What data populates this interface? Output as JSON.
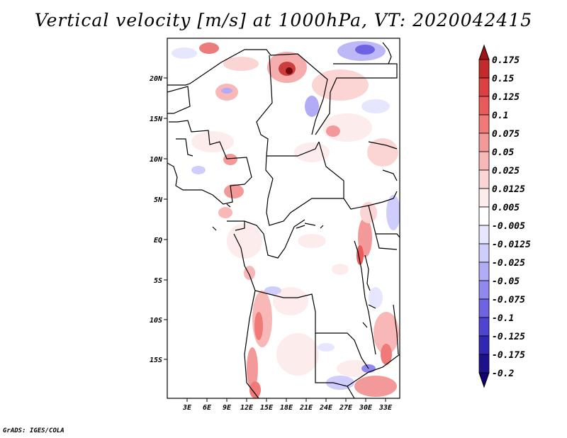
{
  "title": "Vertical velocity [m/s] at 1000hPa, VT: 2020042415",
  "credit": "GrADS: IGES/COLA",
  "map": {
    "lon_ticks": [
      "3E",
      "6E",
      "9E",
      "12E",
      "15E",
      "18E",
      "21E",
      "24E",
      "27E",
      "30E",
      "33E"
    ],
    "lat_ticks": [
      "20N",
      "15N",
      "10N",
      "5N",
      "EQ",
      "5S",
      "10S",
      "15S"
    ]
  },
  "colorbar": {
    "levels": [
      "0.175",
      "0.15",
      "0.125",
      "0.1",
      "0.075",
      "0.05",
      "0.025",
      "0.0125",
      "0.005",
      "-0.005",
      "-0.0125",
      "-0.025",
      "-0.05",
      "-0.075",
      "-0.1",
      "-0.125",
      "-0.175",
      "-0.2"
    ],
    "colors": [
      "#a01418",
      "#c42a2a",
      "#dd4040",
      "#ea5a5a",
      "#ef7a78",
      "#f4999a",
      "#f8b8b8",
      "#fbd4d4",
      "#fdecec",
      "#ffffff",
      "#e6e6ff",
      "#cfcdfb",
      "#b2acf6",
      "#9088ef",
      "#6e64e2",
      "#4e44d0",
      "#3226b4",
      "#1e128c",
      "#100070"
    ]
  }
}
